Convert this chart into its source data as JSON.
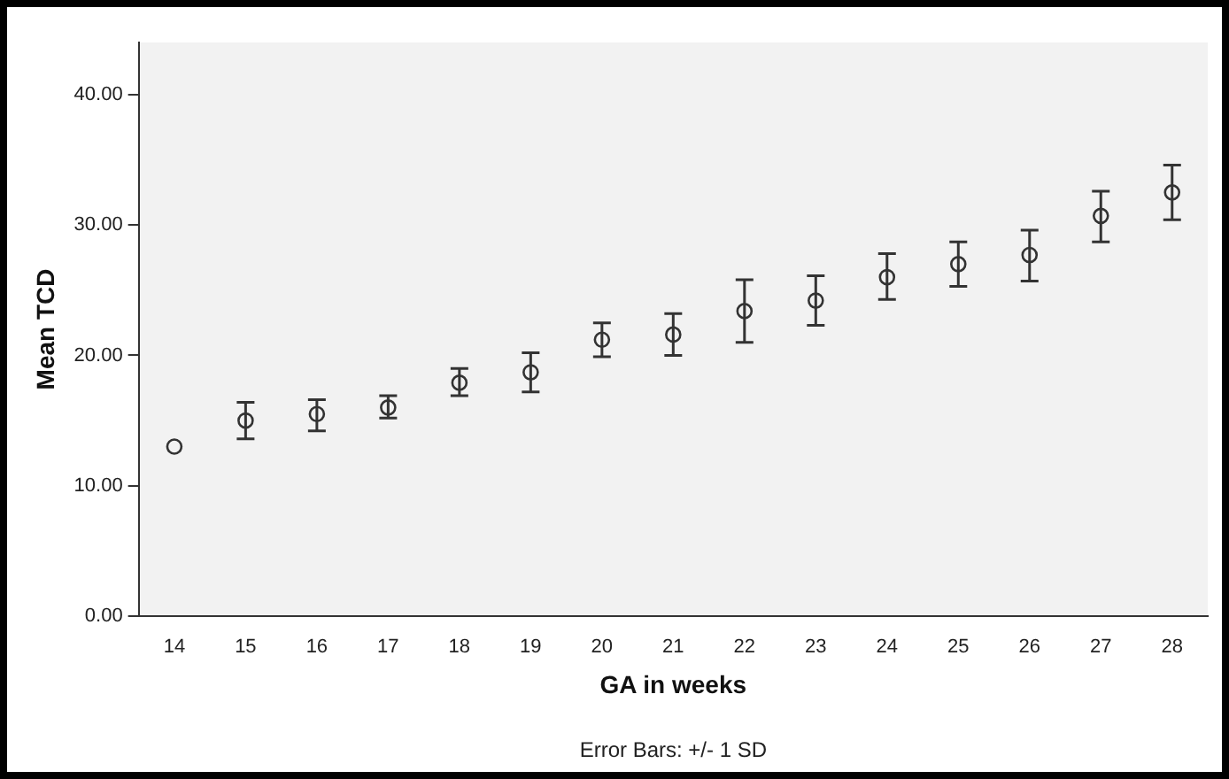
{
  "chart_data": {
    "type": "scatter",
    "xlabel": "GA in weeks",
    "ylabel": "Mean TCD",
    "categories": [
      "14",
      "15",
      "16",
      "17",
      "18",
      "19",
      "20",
      "21",
      "22",
      "23",
      "24",
      "25",
      "26",
      "27",
      "28"
    ],
    "values": [
      13.0,
      15.0,
      15.5,
      16.0,
      17.9,
      18.7,
      21.2,
      21.6,
      23.4,
      24.2,
      26.0,
      27.0,
      27.7,
      30.7,
      32.5
    ],
    "errors": [
      null,
      [
        13.6,
        16.4
      ],
      [
        14.2,
        16.6
      ],
      [
        15.2,
        16.9
      ],
      [
        16.9,
        19.0
      ],
      [
        17.2,
        20.2
      ],
      [
        19.9,
        22.5
      ],
      [
        20.0,
        23.2
      ],
      [
        21.0,
        25.8
      ],
      [
        22.3,
        26.1
      ],
      [
        24.3,
        27.8
      ],
      [
        25.3,
        28.7
      ],
      [
        25.7,
        29.6
      ],
      [
        28.7,
        32.6
      ],
      [
        30.4,
        34.6
      ]
    ],
    "color": "#333333",
    "marker": "circle",
    "grid": false,
    "legend": false,
    "ylim": [
      0,
      44
    ],
    "yticks": [
      {
        "value": 0,
        "label": "0.00"
      },
      {
        "value": 10,
        "label": "10.00"
      },
      {
        "value": 20,
        "label": "20.00"
      },
      {
        "value": 30,
        "label": "30.00"
      },
      {
        "value": 40,
        "label": "40.00"
      }
    ],
    "annotations": [
      "Error Bars: +/- 1 SD"
    ]
  }
}
